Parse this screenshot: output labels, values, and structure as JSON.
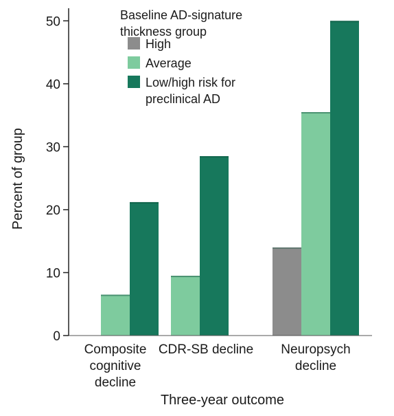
{
  "chart_data": {
    "type": "bar",
    "categories": [
      [
        "Composite",
        "cognitive",
        "decline"
      ],
      [
        "CDR-SB decline"
      ],
      [
        "Neuropsych",
        "decline"
      ]
    ],
    "series": [
      {
        "name": "High",
        "color": "#8c8c8c",
        "values": [
          0,
          0,
          14
        ]
      },
      {
        "name": "Average",
        "color": "#7ecb9e",
        "values": [
          6.5,
          9.5,
          35.5
        ]
      },
      {
        "name": [
          "Low/high risk for",
          "preclinical AD"
        ],
        "color": "#17785c",
        "values": [
          21.2,
          28.5,
          50
        ]
      }
    ],
    "legend_title": [
      "Baseline AD-signature",
      "thickness group"
    ],
    "legend_position": "top-left",
    "xlabel": "Three-year outcome",
    "ylabel": "Percent of group",
    "ylim": [
      0,
      52
    ],
    "yticks": [
      0,
      10,
      20,
      30,
      40,
      50
    ],
    "grid": false
  }
}
